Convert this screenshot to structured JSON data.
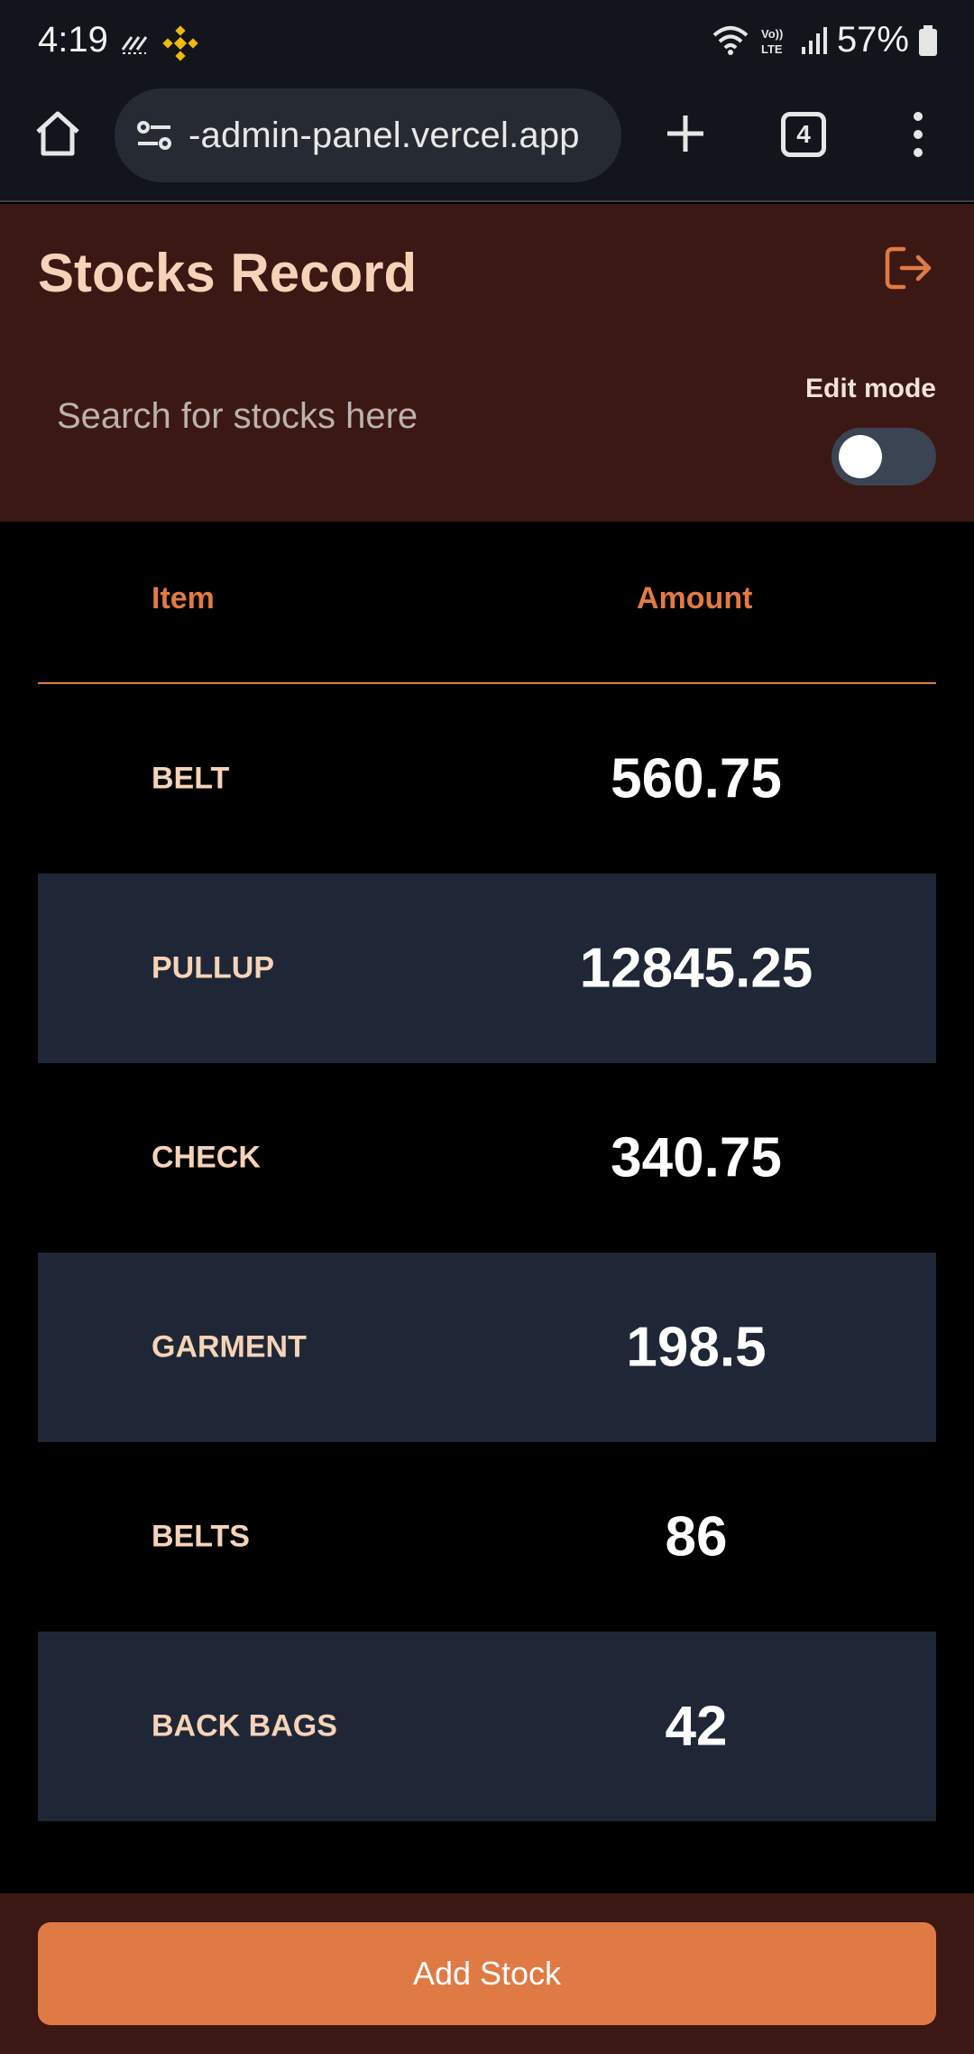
{
  "status_bar": {
    "time": "4:19",
    "battery": "57%",
    "icons": [
      "network-speed-icon",
      "binance-icon",
      "wifi-icon",
      "volte-icon",
      "signal-icon",
      "battery-icon"
    ]
  },
  "browser": {
    "url": "-admin-panel.vercel.app",
    "tab_count": "4"
  },
  "header": {
    "title": "Stocks Record",
    "search_placeholder": "Search for stocks here",
    "edit_mode_label": "Edit mode",
    "edit_mode_on": false
  },
  "table": {
    "headers": {
      "item": "Item",
      "amount": "Amount"
    },
    "rows": [
      {
        "item": "BELT",
        "amount": "560.75"
      },
      {
        "item": "PULLUP",
        "amount": "12845.25"
      },
      {
        "item": "CHECK",
        "amount": "340.75"
      },
      {
        "item": "GARMENT",
        "amount": "198.5"
      },
      {
        "item": "BELTS",
        "amount": "86"
      },
      {
        "item": "BACK BAGS",
        "amount": "42"
      }
    ]
  },
  "footer": {
    "add_label": "Add Stock"
  },
  "colors": {
    "accent": "#e07a44",
    "header_bg": "#3b1814",
    "alt_row_bg": "#1f2736",
    "title_text": "#f6d3b8"
  }
}
